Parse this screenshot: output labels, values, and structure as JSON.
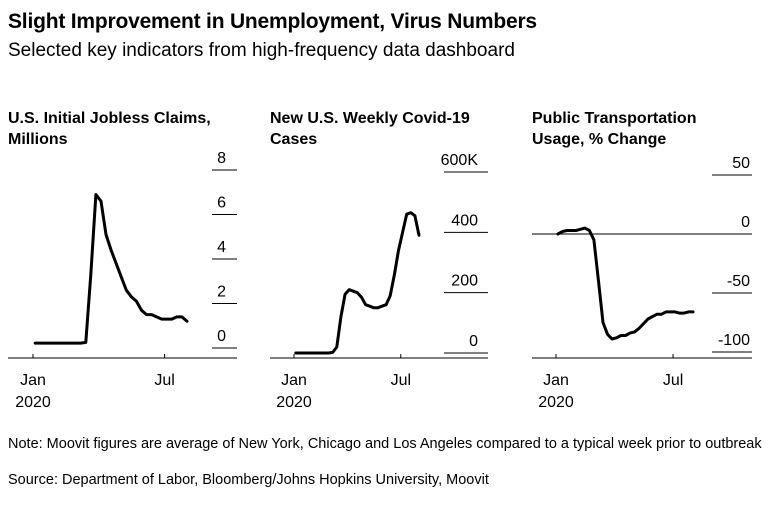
{
  "title": "Slight Improvement in Unemployment, Virus Numbers",
  "subtitle": "Selected key indicators from high-frequency data dashboard",
  "note": "Note: Moovit figures are average of New York, Chicago and Los Angeles compared to a typical week prior to outbreak",
  "source": "Source: Department of Labor, Bloomberg/Johns Hopkins University, Moovit",
  "chart_data": [
    {
      "type": "line",
      "title": "U.S. Initial Jobless Claims, Millions",
      "x_tick_labels": [
        "Jan\n2020",
        "Jul"
      ],
      "y_tick_labels": [
        "8",
        "6",
        "4",
        "2",
        "0"
      ],
      "ylim": [
        0,
        8
      ],
      "x": [
        "2020-01-04",
        "2020-01-11",
        "2020-01-18",
        "2020-01-25",
        "2020-02-01",
        "2020-02-08",
        "2020-02-15",
        "2020-02-22",
        "2020-02-29",
        "2020-03-07",
        "2020-03-14",
        "2020-03-21",
        "2020-03-28",
        "2020-04-04",
        "2020-04-11",
        "2020-04-18",
        "2020-04-25",
        "2020-05-02",
        "2020-05-09",
        "2020-05-16",
        "2020-05-23",
        "2020-05-30",
        "2020-06-06",
        "2020-06-13",
        "2020-06-20",
        "2020-06-27",
        "2020-07-04",
        "2020-07-11",
        "2020-07-18",
        "2020-07-25",
        "2020-08-01"
      ],
      "series": [
        {
          "values": [
            0.22,
            0.22,
            0.22,
            0.22,
            0.22,
            0.22,
            0.22,
            0.22,
            0.22,
            0.22,
            0.25,
            3.3,
            6.9,
            6.6,
            5.1,
            4.4,
            3.8,
            3.2,
            2.6,
            2.3,
            2.1,
            1.7,
            1.5,
            1.5,
            1.4,
            1.3,
            1.3,
            1.3,
            1.4,
            1.4,
            1.2
          ]
        }
      ]
    },
    {
      "type": "line",
      "title": "New U.S. Weekly Covid-19 Cases",
      "x_tick_labels": [
        "Jan\n2020",
        "Jul"
      ],
      "y_tick_labels": [
        "600K",
        "400",
        "200",
        "0"
      ],
      "ylim": [
        0,
        600000
      ],
      "x": [
        "2020-01-04",
        "2020-01-11",
        "2020-01-18",
        "2020-01-25",
        "2020-02-01",
        "2020-02-08",
        "2020-02-15",
        "2020-02-22",
        "2020-02-29",
        "2020-03-07",
        "2020-03-14",
        "2020-03-21",
        "2020-03-28",
        "2020-04-04",
        "2020-04-11",
        "2020-04-18",
        "2020-04-25",
        "2020-05-02",
        "2020-05-09",
        "2020-05-16",
        "2020-05-23",
        "2020-05-30",
        "2020-06-06",
        "2020-06-13",
        "2020-06-20",
        "2020-06-27",
        "2020-07-04",
        "2020-07-11",
        "2020-07-18",
        "2020-07-25",
        "2020-08-01"
      ],
      "series": [
        {
          "values": [
            0,
            0,
            0,
            0,
            0,
            0,
            0,
            0,
            0,
            2000,
            20000,
            120000,
            195000,
            210000,
            205000,
            200000,
            185000,
            160000,
            155000,
            150000,
            150000,
            155000,
            160000,
            190000,
            260000,
            340000,
            400000,
            460000,
            465000,
            455000,
            390000
          ]
        }
      ]
    },
    {
      "type": "line",
      "title": "Public Transportation Usage, % Change",
      "x_tick_labels": [
        "Jan\n2020",
        "Jul"
      ],
      "y_tick_labels": [
        "50",
        "0",
        "-50",
        "-100"
      ],
      "ylim": [
        -100,
        50
      ],
      "x": [
        "2020-01-04",
        "2020-01-11",
        "2020-01-18",
        "2020-01-25",
        "2020-02-01",
        "2020-02-08",
        "2020-02-15",
        "2020-02-22",
        "2020-02-29",
        "2020-03-07",
        "2020-03-14",
        "2020-03-21",
        "2020-03-28",
        "2020-04-04",
        "2020-04-11",
        "2020-04-18",
        "2020-04-25",
        "2020-05-02",
        "2020-05-09",
        "2020-05-16",
        "2020-05-23",
        "2020-05-30",
        "2020-06-06",
        "2020-06-13",
        "2020-06-20",
        "2020-06-27",
        "2020-07-04",
        "2020-07-11",
        "2020-07-18",
        "2020-07-25",
        "2020-08-01"
      ],
      "series": [
        {
          "values": [
            0,
            2,
            3,
            3,
            3,
            4,
            5,
            3,
            -5,
            -40,
            -75,
            -85,
            -89,
            -88,
            -86,
            -86,
            -84,
            -83,
            -80,
            -76,
            -72,
            -70,
            -68,
            -68,
            -66,
            -66,
            -66,
            -67,
            -67,
            -66,
            -66
          ]
        }
      ]
    }
  ]
}
